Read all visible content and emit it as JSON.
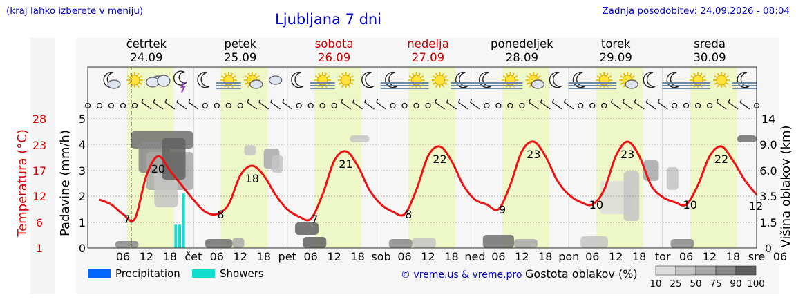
{
  "header": {
    "left_note": "(kraj lahko izberete v meniju)",
    "title": "Ljubljana 7 dni",
    "updated": "Zadnja posodobitev: 24.09.2026 - 08:04"
  },
  "days": [
    {
      "name": "četrtek",
      "date": "24.09",
      "weekend": false
    },
    {
      "name": "petek",
      "date": "25.09",
      "weekend": false
    },
    {
      "name": "sobota",
      "date": "26.09",
      "weekend": true
    },
    {
      "name": "nedelja",
      "date": "27.09",
      "weekend": true
    },
    {
      "name": "ponedeljek",
      "date": "28.09",
      "weekend": false
    },
    {
      "name": "torek",
      "date": "29.09",
      "weekend": false
    },
    {
      "name": "sreda",
      "date": "30.09",
      "weekend": false
    }
  ],
  "weather_icons": [
    [
      "moon-cloud-icon",
      "sun-icon",
      "clouds-icon",
      "thunderstorm-icon"
    ],
    [
      "moon-icon",
      "sun-fog-icon",
      "sun-cloud-icon",
      "cloud-icon"
    ],
    [
      "moon-icon",
      "sun-fog-icon",
      "sun-icon",
      "moon-icon"
    ],
    [
      "moon-fog-icon",
      "sun-fog-icon",
      "sun-icon",
      "moon-fog-icon"
    ],
    [
      "moon-fog-icon",
      "sun-fog-icon",
      "sun-cloud-icon",
      "moon-icon"
    ],
    [
      "moon-fog-icon",
      "sun-fog-icon",
      "sun-cloud-icon",
      "moon-icon"
    ],
    [
      "moon-fog-icon",
      "sun-fog-icon",
      "sun-icon",
      "moon-fog-icon"
    ]
  ],
  "chart_data": {
    "type": "line",
    "x_unit": "hour",
    "x_ticks": [
      "06",
      "12",
      "18",
      "čet",
      "06",
      "12",
      "18",
      "pet",
      "06",
      "12",
      "18",
      "sob",
      "06",
      "12",
      "18",
      "ned",
      "06",
      "12",
      "18",
      "pon",
      "06",
      "12",
      "18",
      "tor",
      "06",
      "12",
      "18",
      "sre",
      "06",
      "12",
      "18"
    ],
    "day_labels": [
      "pet",
      "sob",
      "ned",
      "pon",
      "tor",
      "sre"
    ],
    "current_time": "24.09 08:04",
    "axes": {
      "left_temp_label": "Temperatura (°C)",
      "left_temp_ticks": [
        "28",
        "23",
        "17",
        "12",
        "6",
        "1"
      ],
      "left_precip_label": "Padavine (mm/h)",
      "left_precip_ticks": [
        "5",
        "4",
        "3",
        "2",
        "1",
        "0"
      ],
      "right_label": "Višina oblakov (km)",
      "right_ticks": [
        "14",
        "9.0",
        "6.0",
        "3.5",
        "1.5",
        "0"
      ]
    },
    "temperature": {
      "color": "#ee1111",
      "x_hours": [
        0,
        3,
        6,
        9,
        12,
        15,
        18,
        21,
        24,
        27,
        30,
        33,
        36,
        39,
        42,
        45,
        48,
        51,
        54,
        57,
        60,
        63,
        66,
        69,
        72,
        75,
        78,
        81,
        84,
        87,
        90,
        93,
        96,
        99,
        102,
        105,
        108,
        111,
        114,
        117,
        120,
        123,
        126,
        129,
        132,
        135,
        138,
        141,
        144,
        147,
        150,
        153,
        156,
        159,
        162,
        165,
        168
      ],
      "values_c": [
        11,
        10,
        8,
        7,
        16,
        20,
        17,
        14,
        11,
        8.5,
        8,
        10,
        16,
        18,
        16,
        12,
        9,
        7.5,
        7,
        12,
        19,
        21,
        18,
        13,
        10,
        8.5,
        8,
        13,
        20,
        22,
        19,
        14,
        11,
        10,
        9,
        14,
        21,
        23,
        20,
        15,
        12,
        10.5,
        10,
        13,
        20,
        23,
        20,
        14,
        11.5,
        10.5,
        10,
        14,
        20,
        22,
        19,
        15,
        12
      ],
      "labels": [
        {
          "h": 7,
          "v": "7"
        },
        {
          "h": 15,
          "v": "20"
        },
        {
          "h": 31,
          "v": "8"
        },
        {
          "h": 39,
          "v": "18"
        },
        {
          "h": 55,
          "v": "7"
        },
        {
          "h": 63,
          "v": "21"
        },
        {
          "h": 79,
          "v": "8"
        },
        {
          "h": 87,
          "v": "22"
        },
        {
          "h": 103,
          "v": "9"
        },
        {
          "h": 111,
          "v": "23"
        },
        {
          "h": 127,
          "v": "10"
        },
        {
          "h": 135,
          "v": "23"
        },
        {
          "h": 151,
          "v": "10"
        },
        {
          "h": 159,
          "v": "22"
        },
        {
          "h": 168,
          "v": "12"
        }
      ]
    },
    "showers": [
      {
        "h": 19.5,
        "mm": 0.9
      },
      {
        "h": 20.5,
        "mm": 0.9
      },
      {
        "h": 21.5,
        "mm": 2.1
      }
    ],
    "legend": [
      {
        "label": "Precipitation",
        "color": "#0066ff"
      },
      {
        "label": "Showers",
        "color": "#11ddcc"
      }
    ],
    "cloud_legend": {
      "label": "Gostota oblakov (%)",
      "values": [
        "10",
        "25",
        "50",
        "75",
        "90",
        "100"
      ],
      "colors": [
        "#dcdcdc",
        "#c4c4c4",
        "#a8a8a8",
        "#888888",
        "#606060"
      ]
    },
    "credit": "© vreme.us & vreme.pro"
  }
}
